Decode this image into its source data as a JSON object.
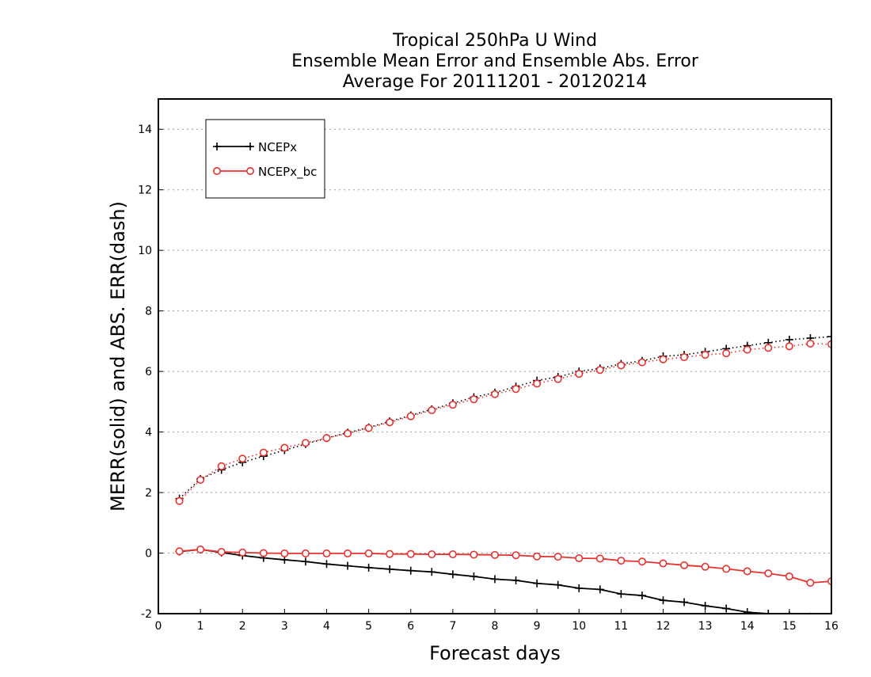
{
  "chart_data": {
    "type": "line",
    "title": [
      "Tropical 250hPa U Wind",
      "Ensemble Mean Error and Ensemble Abs. Error",
      "Average For 20111201 - 20120214"
    ],
    "xlabel": "Forecast days",
    "ylabel": "MERR(solid) and ABS. ERR(dash)",
    "xlim": [
      0,
      16
    ],
    "ylim": [
      -2,
      15
    ],
    "xticks": [
      0,
      1,
      2,
      3,
      4,
      5,
      6,
      7,
      8,
      9,
      10,
      11,
      12,
      13,
      14,
      15,
      16
    ],
    "yticks": [
      -2,
      0,
      2,
      4,
      6,
      8,
      10,
      12,
      14
    ],
    "grid": "horizontal dotted",
    "legend_position": "top-left",
    "x": [
      0.5,
      1.0,
      1.5,
      2.0,
      2.5,
      3.0,
      3.5,
      4.0,
      4.5,
      5.0,
      5.5,
      6.0,
      6.5,
      7.0,
      7.5,
      8.0,
      8.5,
      9.0,
      9.5,
      10.0,
      10.5,
      11.0,
      11.5,
      12.0,
      12.5,
      13.0,
      13.5,
      14.0,
      14.5,
      15.0,
      15.5,
      16.0
    ],
    "series": [
      {
        "name": "NCEPx",
        "color": "#000000",
        "marker": "plus",
        "merr": [
          0.05,
          0.12,
          0.02,
          -0.08,
          -0.16,
          -0.22,
          -0.28,
          -0.36,
          -0.42,
          -0.48,
          -0.53,
          -0.58,
          -0.62,
          -0.7,
          -0.77,
          -0.86,
          -0.9,
          -1.0,
          -1.05,
          -1.16,
          -1.2,
          -1.35,
          -1.4,
          -1.56,
          -1.62,
          -1.74,
          -1.83,
          -1.95,
          -2.0,
          -2.05,
          -2.1,
          -2.15
        ],
        "abs_err": [
          1.8,
          2.45,
          2.75,
          3.0,
          3.2,
          3.4,
          3.6,
          3.8,
          3.98,
          4.15,
          4.35,
          4.55,
          4.75,
          4.95,
          5.15,
          5.3,
          5.5,
          5.7,
          5.82,
          6.0,
          6.1,
          6.25,
          6.35,
          6.5,
          6.55,
          6.65,
          6.75,
          6.85,
          6.95,
          7.05,
          7.1,
          7.15
        ]
      },
      {
        "name": "NCEPx_bc",
        "color": "#e8312f",
        "marker": "circle",
        "merr": [
          0.06,
          0.12,
          0.04,
          0.02,
          0.0,
          -0.01,
          -0.01,
          -0.01,
          -0.01,
          -0.01,
          -0.03,
          -0.03,
          -0.04,
          -0.04,
          -0.05,
          -0.06,
          -0.07,
          -0.11,
          -0.12,
          -0.17,
          -0.18,
          -0.25,
          -0.28,
          -0.34,
          -0.4,
          -0.45,
          -0.52,
          -0.6,
          -0.67,
          -0.77,
          -0.98,
          -0.93
        ],
        "abs_err": [
          1.72,
          2.42,
          2.87,
          3.12,
          3.32,
          3.48,
          3.64,
          3.8,
          3.95,
          4.13,
          4.32,
          4.52,
          4.72,
          4.9,
          5.08,
          5.25,
          5.42,
          5.6,
          5.75,
          5.92,
          6.05,
          6.2,
          6.3,
          6.4,
          6.47,
          6.55,
          6.6,
          6.72,
          6.78,
          6.83,
          6.92,
          6.9
        ]
      }
    ]
  }
}
